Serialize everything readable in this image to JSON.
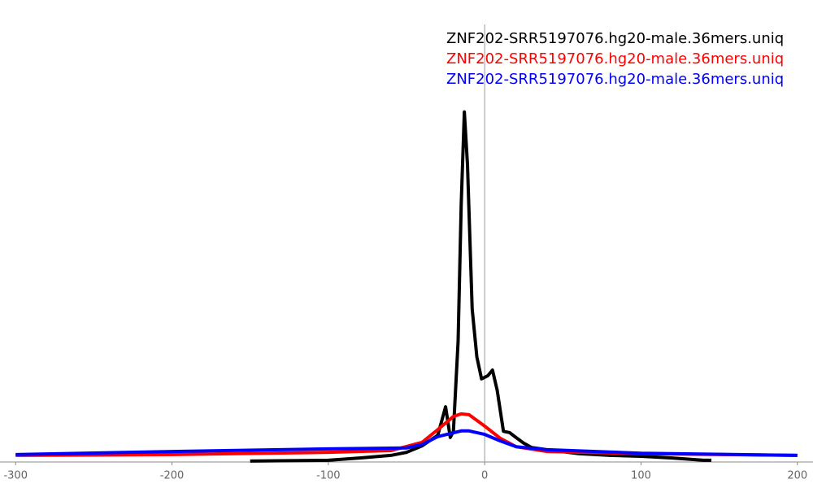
{
  "chart_data": {
    "type": "line",
    "xlim": [
      -310,
      210
    ],
    "xticks": [
      -300,
      -200,
      -100,
      0,
      100,
      200
    ],
    "ylim": [
      0,
      100
    ],
    "series": [
      {
        "name": "ZNF202-SRR5197076.hg20-male.36mers.uniq",
        "color": "#000000",
        "x": [
          -150,
          -100,
          -80,
          -60,
          -50,
          -40,
          -30,
          -25,
          -22,
          -20,
          -17,
          -15,
          -13,
          -11,
          -8,
          -5,
          -2,
          2,
          5,
          8,
          12,
          16,
          20,
          25,
          30,
          40,
          60,
          80,
          100,
          120,
          140,
          145
        ],
        "values": [
          0.2,
          0.4,
          0.9,
          1.5,
          2.2,
          3.7,
          6.1,
          12.6,
          5.6,
          7,
          27.5,
          59,
          80,
          68,
          35,
          24,
          19,
          19.7,
          21,
          16.4,
          7,
          6.7,
          5.6,
          4.3,
          3.3,
          2.8,
          1.9,
          1.5,
          1.3,
          0.9,
          0.4,
          0.4
        ]
      },
      {
        "name": "ZNF202-SRR5197076.hg20-male.36mers.uniq",
        "color": "#ff0000",
        "x": [
          -300,
          -200,
          -100,
          -60,
          -40,
          -30,
          -20,
          -15,
          -10,
          0,
          10,
          20,
          40,
          100,
          200
        ],
        "values": [
          1.5,
          1.7,
          2.2,
          2.6,
          4.5,
          7.4,
          10.4,
          11,
          10.8,
          8.2,
          5.4,
          3.5,
          2.4,
          1.9,
          1.5
        ]
      },
      {
        "name": "ZNF202-SRR5197076.hg20-male.36mers.uniq",
        "color": "#0000ff",
        "x": [
          -300,
          -200,
          -100,
          -50,
          -40,
          -30,
          -15,
          -10,
          0,
          10,
          20,
          40,
          100,
          200
        ],
        "values": [
          1.7,
          2.4,
          3.0,
          3.2,
          4,
          5.8,
          7.1,
          7.1,
          6.3,
          4.8,
          3.5,
          2.8,
          2.0,
          1.5
        ]
      }
    ]
  }
}
